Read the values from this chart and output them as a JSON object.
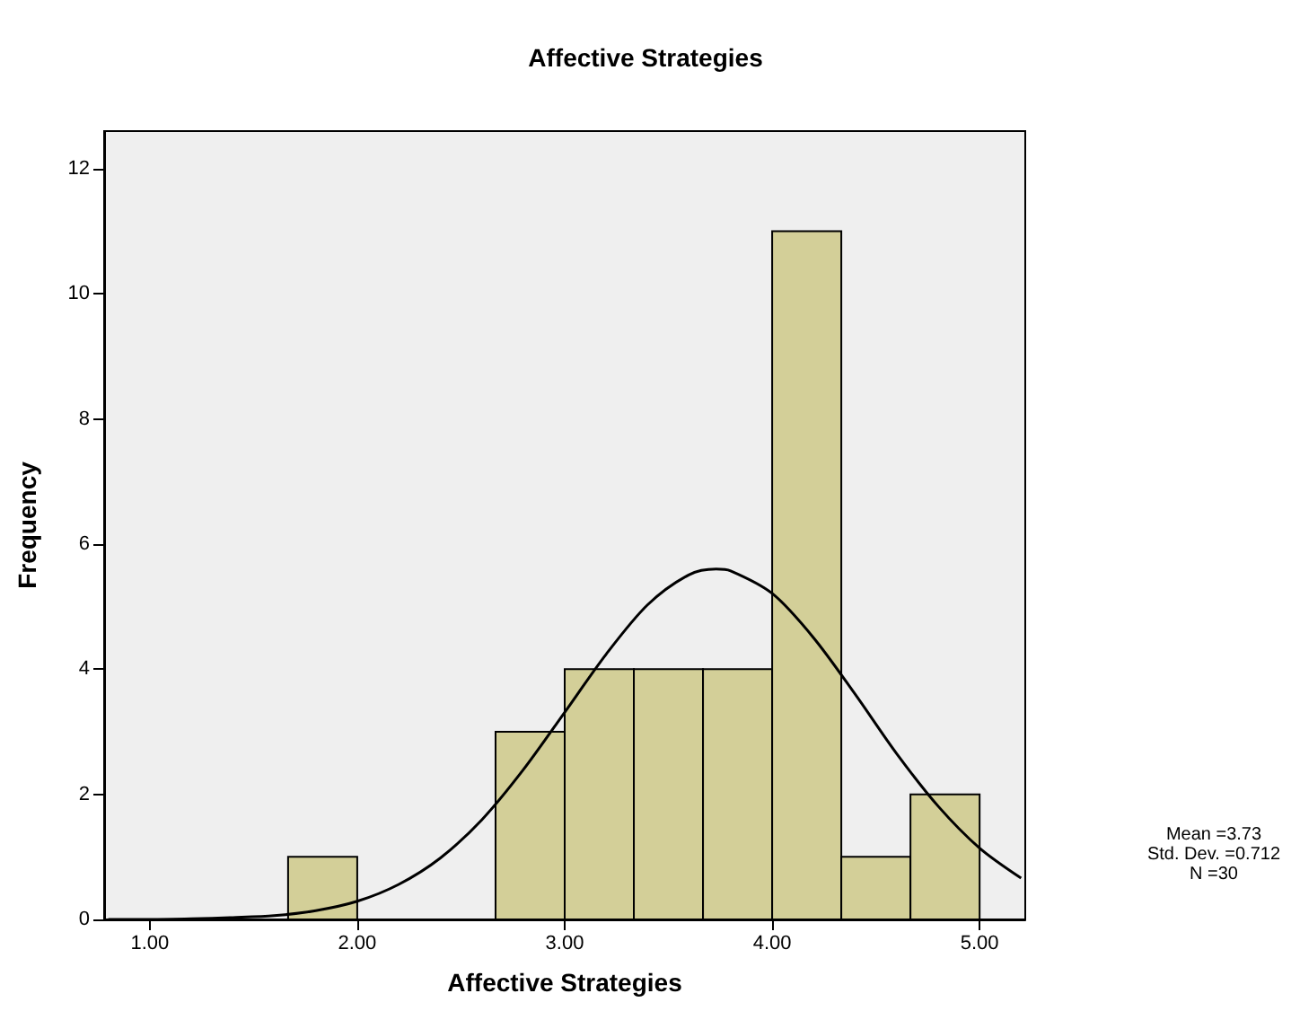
{
  "chart_data": {
    "type": "histogram",
    "title": "Affective Strategies",
    "xlabel": "Affective Strategies",
    "ylabel": "Frequency",
    "bins": [
      1.6667,
      2.0,
      2.3333,
      2.6667,
      3.0,
      3.3333,
      3.6667,
      4.0,
      4.3333,
      4.6667,
      5.0
    ],
    "values": [
      1,
      0,
      0,
      3,
      4,
      4,
      4,
      11,
      1,
      2
    ],
    "color": "#d3cf98",
    "series": [
      {
        "type": "line",
        "color": "#000000",
        "x": [
          0.8,
          1.0,
          1.2,
          1.4,
          1.6,
          1.8,
          2.0,
          2.2,
          2.4,
          2.6,
          2.8,
          3.0,
          3.2,
          3.4,
          3.6,
          3.73,
          3.8,
          4.0,
          4.2,
          4.4,
          4.6,
          4.8,
          5.0,
          5.2
        ],
        "values": [
          0.0,
          0.0,
          0.01,
          0.03,
          0.06,
          0.14,
          0.29,
          0.56,
          0.98,
          1.59,
          2.39,
          3.31,
          4.24,
          5.03,
          5.51,
          5.6,
          5.57,
          5.21,
          4.5,
          3.6,
          2.65,
          1.81,
          1.14,
          0.66
        ]
      }
    ],
    "xlim": [
      0.78,
      5.22
    ],
    "xticks": [
      {
        "value": 1,
        "label": "1.00"
      },
      {
        "value": 2,
        "label": "2.00"
      },
      {
        "value": 3,
        "label": "3.00"
      },
      {
        "value": 4,
        "label": "4.00"
      },
      {
        "value": 5,
        "label": "5.00"
      }
    ],
    "ylim": [
      0,
      12.6
    ],
    "yticks": [
      0,
      2,
      4,
      6,
      8,
      10,
      12
    ],
    "grid": false,
    "annotations": [
      "Mean =3.73",
      "Std. Dev. =0.712",
      "N =30"
    ]
  }
}
